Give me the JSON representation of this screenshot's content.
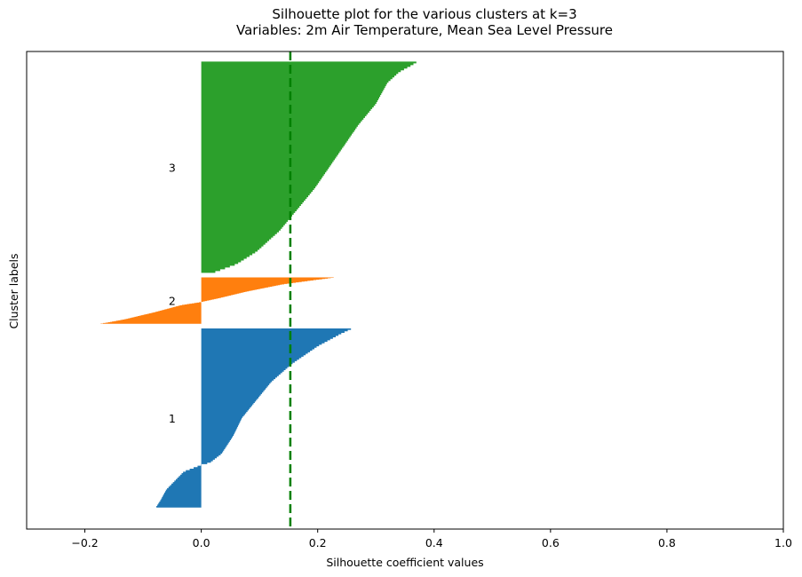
{
  "chart_data": {
    "type": "area",
    "title": "Silhouette plot for the various clusters at k=3",
    "subtitle": "Variables: 2m Air Temperature, Mean Sea Level Pressure",
    "xlabel": "Silhouette coefficient values",
    "ylabel": "Cluster labels",
    "xlim": [
      -0.3,
      1.0
    ],
    "ylim": [
      0,
      1040
    ],
    "xticks": [
      {
        "value": -0.2,
        "label": "−0.2"
      },
      {
        "value": 0.0,
        "label": "0.0"
      },
      {
        "value": 0.2,
        "label": "0.2"
      },
      {
        "value": 0.4,
        "label": "0.4"
      },
      {
        "value": 0.6,
        "label": "0.6"
      },
      {
        "value": 0.8,
        "label": "0.8"
      },
      {
        "value": 1.0,
        "label": "1.0"
      }
    ],
    "grid": false,
    "average_silhouette": 0.153,
    "average_line_color": "#008000",
    "clusters": [
      {
        "label": "1",
        "color": "#1f77b4",
        "y_lower": 47,
        "size": 390,
        "profile": [
          [
            0.0,
            0.26
          ],
          [
            0.03,
            0.24
          ],
          [
            0.1,
            0.2
          ],
          [
            0.2,
            0.155
          ],
          [
            0.3,
            0.12
          ],
          [
            0.4,
            0.095
          ],
          [
            0.5,
            0.07
          ],
          [
            0.6,
            0.055
          ],
          [
            0.7,
            0.035
          ],
          [
            0.75,
            0.015
          ],
          [
            0.763,
            0.0
          ],
          [
            0.8,
            -0.03
          ],
          [
            0.9,
            -0.06
          ],
          [
            0.96,
            -0.07
          ],
          [
            1.0,
            -0.078
          ]
        ]
      },
      {
        "label": "2",
        "color": "#ff7f0e",
        "y_lower": 447,
        "size": 101,
        "profile": [
          [
            0.0,
            0.23
          ],
          [
            0.05,
            0.2
          ],
          [
            0.15,
            0.14
          ],
          [
            0.3,
            0.08
          ],
          [
            0.45,
            0.03
          ],
          [
            0.53,
            0.0
          ],
          [
            0.6,
            -0.035
          ],
          [
            0.75,
            -0.08
          ],
          [
            0.9,
            -0.13
          ],
          [
            0.97,
            -0.16
          ],
          [
            1.0,
            -0.175
          ]
        ]
      },
      {
        "label": "3",
        "color": "#2ca02c",
        "y_lower": 558,
        "size": 460,
        "profile": [
          [
            0.0,
            0.372
          ],
          [
            0.02,
            0.36
          ],
          [
            0.05,
            0.34
          ],
          [
            0.1,
            0.32
          ],
          [
            0.15,
            0.31
          ],
          [
            0.2,
            0.3
          ],
          [
            0.3,
            0.27
          ],
          [
            0.4,
            0.245
          ],
          [
            0.5,
            0.22
          ],
          [
            0.6,
            0.195
          ],
          [
            0.7,
            0.165
          ],
          [
            0.8,
            0.135
          ],
          [
            0.9,
            0.095
          ],
          [
            0.96,
            0.06
          ],
          [
            1.0,
            0.02
          ]
        ]
      }
    ]
  }
}
